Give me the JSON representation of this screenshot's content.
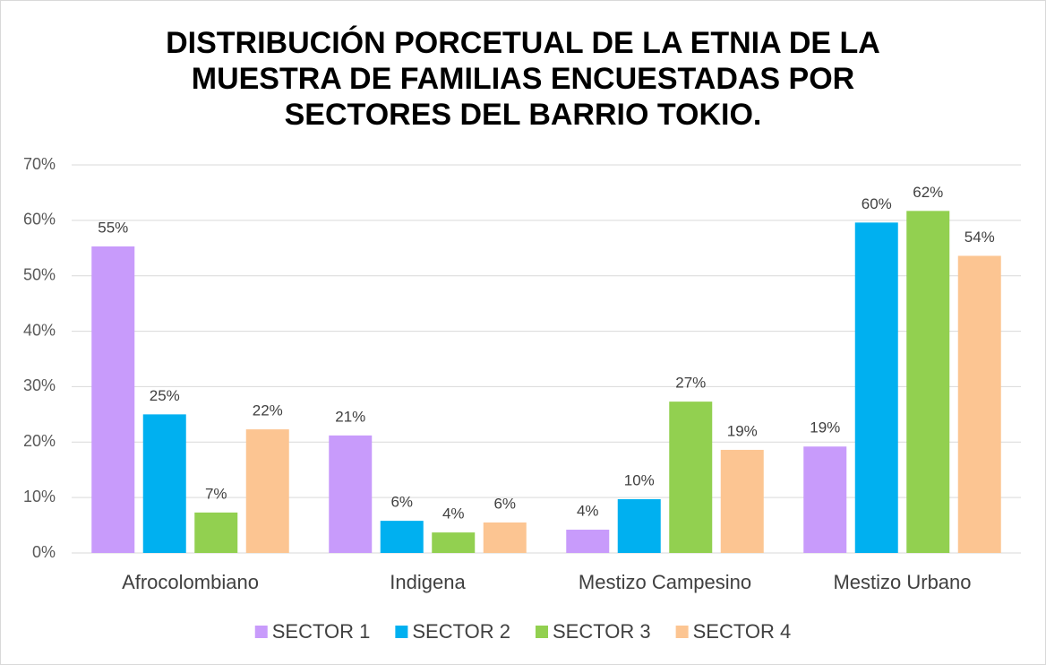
{
  "chart_data": {
    "type": "bar",
    "title": [
      "DISTRIBUCIÓN PORCETUAL DE LA ETNIA DE LA",
      "MUESTRA DE FAMILIAS ENCUESTADAS POR",
      "SECTORES DEL  BARRIO TOKIO."
    ],
    "categories": [
      "Afrocolombiano",
      "Indigena",
      "Mestizo Campesino",
      "Mestizo Urbano"
    ],
    "series": [
      {
        "name": "SECTOR 1",
        "color": "#c89bfb",
        "values": [
          55.3,
          21.2,
          4.2,
          19.2
        ],
        "value_labels": [
          "55%",
          "21%",
          "4%",
          "19%"
        ]
      },
      {
        "name": "SECTOR 2",
        "color": "#00b0f0",
        "values": [
          25.0,
          5.8,
          9.7,
          59.6
        ],
        "value_labels": [
          "25%",
          "6%",
          "10%",
          "60%"
        ]
      },
      {
        "name": "SECTOR 3",
        "color": "#92d050",
        "values": [
          7.3,
          3.7,
          27.3,
          61.7
        ],
        "value_labels": [
          "7%",
          "4%",
          "27%",
          "62%"
        ]
      },
      {
        "name": "SECTOR 4",
        "color": "#fcc592",
        "values": [
          22.3,
          5.5,
          18.6,
          53.6
        ],
        "value_labels": [
          "22%",
          "6%",
          "19%",
          "54%"
        ]
      }
    ],
    "ylim": [
      0,
      70
    ],
    "yticks": [
      {
        "value": 0,
        "label": "0%"
      },
      {
        "value": 10,
        "label": "10%"
      },
      {
        "value": 20,
        "label": "20%"
      },
      {
        "value": 30,
        "label": "30%"
      },
      {
        "value": 40,
        "label": "40%"
      },
      {
        "value": 50,
        "label": "50%"
      },
      {
        "value": 60,
        "label": "60%"
      },
      {
        "value": 70,
        "label": "70%"
      }
    ],
    "grid": true,
    "legend": "bottom"
  }
}
